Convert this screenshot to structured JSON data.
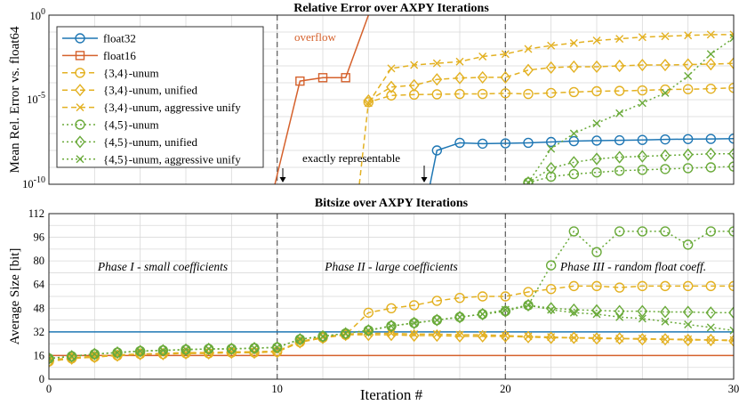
{
  "colors": {
    "float32": "#1f77b4",
    "float16": "#d5612c",
    "unum34": "#e3b122",
    "unum45": "#6aaa3a",
    "grid": "#d9d9d9",
    "vline": "#666666"
  },
  "chart_data": [
    {
      "type": "line",
      "title": "Relative Error over AXPY Iterations",
      "xlabel": "",
      "ylabel": "Mean Rel. Error vs. float64",
      "yscale": "log",
      "xlim": [
        0,
        30
      ],
      "ylim_exponent": [
        -10,
        0
      ],
      "ytick_labels": [
        "10^0",
        "10^-5",
        "10^-10"
      ],
      "grid": true,
      "legend_position": "top-left",
      "series": [
        {
          "name": "float32",
          "key": "float32",
          "dash": "solid",
          "marker": "circle",
          "x": [
            16.7,
            17,
            18,
            19,
            20,
            21,
            22,
            23,
            24,
            25,
            26,
            27,
            28,
            29,
            30
          ],
          "log10y": [
            -10,
            -8.0,
            -7.55,
            -7.6,
            -7.58,
            -7.55,
            -7.5,
            -7.45,
            -7.42,
            -7.4,
            -7.38,
            -7.35,
            -7.33,
            -7.32,
            -7.3
          ]
        },
        {
          "name": "float16",
          "key": "float16",
          "dash": "solid",
          "marker": "square",
          "x": [
            9.9,
            11,
            12,
            13,
            14
          ],
          "log10y": [
            -10,
            -3.9,
            -3.7,
            -3.7,
            0
          ]
        },
        {
          "name": "{3,4}-unum",
          "key": "unum34",
          "dash": "dashed",
          "marker": "circle",
          "x": [
            13.6,
            14,
            15,
            16,
            17,
            18,
            19,
            20,
            21,
            22,
            23,
            24,
            25,
            26,
            27,
            28,
            29,
            30
          ],
          "log10y": [
            -10,
            -5.15,
            -4.75,
            -4.7,
            -4.68,
            -4.66,
            -4.66,
            -4.62,
            -4.66,
            -4.6,
            -4.55,
            -4.5,
            -4.48,
            -4.45,
            -4.4,
            -4.38,
            -4.35,
            -4.3
          ]
        },
        {
          "name": "{3,4}-unum, unified",
          "key": "unum34",
          "dash": "dashed",
          "marker": "diamond",
          "x": [
            14,
            15,
            16,
            17,
            18,
            19,
            20,
            21,
            22,
            23,
            24,
            25,
            26,
            27,
            28,
            29,
            30
          ],
          "log10y": [
            -5.05,
            -4.25,
            -4.15,
            -3.8,
            -3.72,
            -3.68,
            -3.68,
            -3.25,
            -3.1,
            -3.05,
            -3.05,
            -3.0,
            -2.95,
            -2.95,
            -2.92,
            -2.9,
            -2.85
          ]
        },
        {
          "name": "{3,4}-unum, aggressive unify",
          "key": "unum34",
          "dash": "dashed",
          "marker": "x",
          "x": [
            14,
            15,
            16,
            17,
            18,
            19,
            20,
            21,
            22,
            23,
            24,
            25,
            26,
            27,
            28,
            29,
            30
          ],
          "log10y": [
            -5.2,
            -3.15,
            -2.95,
            -2.85,
            -2.75,
            -2.45,
            -2.3,
            -2.0,
            -1.8,
            -1.65,
            -1.5,
            -1.4,
            -1.3,
            -1.25,
            -1.2,
            -1.15,
            -1.15
          ]
        },
        {
          "name": "{4,5}-unum",
          "key": "unum45",
          "dash": "dotted",
          "marker": "circle",
          "x": [
            21,
            22,
            23,
            24,
            25,
            26,
            27,
            28,
            29,
            30
          ],
          "log10y": [
            -9.9,
            -9.55,
            -9.4,
            -9.3,
            -9.2,
            -9.15,
            -9.1,
            -9.05,
            -9.0,
            -8.95
          ]
        },
        {
          "name": "{4,5}-unum, unified",
          "key": "unum45",
          "dash": "dotted",
          "marker": "diamond",
          "x": [
            21,
            22,
            23,
            24,
            25,
            26,
            27,
            28,
            29,
            30
          ],
          "log10y": [
            -9.9,
            -9.05,
            -8.7,
            -8.5,
            -8.4,
            -8.35,
            -8.3,
            -8.25,
            -8.2,
            -8.2
          ]
        },
        {
          "name": "{4,5}-unum, aggressive unify",
          "key": "unum45",
          "dash": "dotted",
          "marker": "x",
          "x": [
            21,
            22,
            23,
            24,
            25,
            26,
            27,
            28,
            29,
            30
          ],
          "log10y": [
            -9.9,
            -7.9,
            -7.0,
            -6.4,
            -5.8,
            -5.2,
            -4.6,
            -3.6,
            -2.3,
            -1.35
          ]
        }
      ],
      "vlines": [
        10,
        20
      ],
      "annotations": {
        "overflow": "overflow",
        "exactly_representable": "exactly representable"
      }
    },
    {
      "type": "line",
      "title": "Bitsize over AXPY Iterations",
      "xlabel": "Iteration #",
      "ylabel": "Average Size [bit]",
      "xlim": [
        0,
        30
      ],
      "ylim": [
        0,
        112
      ],
      "xticks": [
        0,
        10,
        20,
        30
      ],
      "yticks": [
        0,
        16,
        32,
        48,
        64,
        80,
        96,
        112
      ],
      "grid": true,
      "series": [
        {
          "name": "float32",
          "key": "float32",
          "dash": "solid",
          "marker": "none",
          "x": [
            0,
            30
          ],
          "y": [
            32,
            32
          ]
        },
        {
          "name": "float16",
          "key": "float16",
          "dash": "solid",
          "marker": "none",
          "x": [
            0,
            30
          ],
          "y": [
            16,
            16
          ]
        },
        {
          "name": "{3,4}-unum",
          "key": "unum34",
          "dash": "dashed",
          "marker": "circle",
          "x": [
            0,
            1,
            2,
            3,
            4,
            5,
            6,
            7,
            8,
            9,
            10,
            11,
            12,
            13,
            14,
            15,
            16,
            17,
            18,
            19,
            20,
            21,
            22,
            23,
            24,
            25,
            26,
            27,
            28,
            29,
            30
          ],
          "y": [
            12,
            14,
            15,
            16,
            17,
            17,
            17.5,
            17.5,
            18,
            18,
            18.5,
            25,
            28,
            30,
            45,
            48,
            50,
            53,
            55,
            56,
            56,
            59,
            61,
            63,
            63,
            62,
            63,
            63,
            63,
            63,
            63
          ]
        },
        {
          "name": "{3,4}-unum, unified",
          "key": "unum34",
          "dash": "dashed",
          "marker": "diamond",
          "x": [
            0,
            1,
            2,
            3,
            4,
            5,
            6,
            7,
            8,
            9,
            10,
            11,
            12,
            13,
            14,
            15,
            16,
            17,
            18,
            19,
            20,
            21,
            22,
            23,
            24,
            25,
            26,
            27,
            28,
            29,
            30
          ],
          "y": [
            12,
            14,
            15,
            16,
            17,
            17,
            17.5,
            17.5,
            18,
            18,
            18.5,
            25,
            28,
            30,
            30,
            30,
            29.5,
            29.5,
            29,
            29,
            29,
            28.5,
            28,
            28,
            27.5,
            27.5,
            27,
            27,
            26.5,
            26.5,
            26
          ]
        },
        {
          "name": "{3,4}-unum, aggressive unify",
          "key": "unum34",
          "dash": "dashed",
          "marker": "x",
          "x": [
            0,
            1,
            2,
            3,
            4,
            5,
            6,
            7,
            8,
            9,
            10,
            11,
            12,
            13,
            14,
            15,
            16,
            17,
            18,
            19,
            20,
            21,
            22,
            23,
            24,
            25,
            26,
            27,
            28,
            29,
            30
          ],
          "y": [
            13,
            14.5,
            15.5,
            16.5,
            17,
            17.5,
            18,
            18,
            18.5,
            18.5,
            19,
            25.5,
            28.5,
            30.5,
            31,
            31,
            30.5,
            30.5,
            30,
            30,
            29.5,
            29,
            28.5,
            28,
            28,
            27.5,
            27.5,
            27,
            27,
            26.5,
            26.5
          ]
        },
        {
          "name": "{4,5}-unum",
          "key": "unum45",
          "dash": "dotted",
          "marker": "circle",
          "x": [
            0,
            1,
            2,
            3,
            4,
            5,
            6,
            7,
            8,
            9,
            10,
            11,
            12,
            13,
            14,
            15,
            16,
            17,
            18,
            19,
            20,
            21,
            22,
            23,
            24,
            25,
            26,
            27,
            28,
            29,
            30
          ],
          "y": [
            14,
            15.5,
            17,
            18,
            19,
            19.5,
            20,
            20.5,
            20.5,
            21,
            21.5,
            27,
            29,
            31,
            33,
            36,
            38,
            40,
            42,
            44,
            46,
            50,
            77,
            100,
            86,
            100,
            100,
            100,
            91,
            100,
            100
          ]
        },
        {
          "name": "{4,5}-unum, unified",
          "key": "unum45",
          "dash": "dotted",
          "marker": "diamond",
          "x": [
            0,
            1,
            2,
            3,
            4,
            5,
            6,
            7,
            8,
            9,
            10,
            11,
            12,
            13,
            14,
            15,
            16,
            17,
            18,
            19,
            20,
            21,
            22,
            23,
            24,
            25,
            26,
            27,
            28,
            29,
            30
          ],
          "y": [
            14,
            15.5,
            17,
            18,
            19,
            19.5,
            20,
            20.5,
            20.5,
            21,
            21.5,
            27,
            29,
            31,
            33,
            36,
            38,
            40,
            42,
            44,
            46,
            50,
            48,
            47,
            46.5,
            46,
            46,
            45.5,
            45.5,
            45,
            45
          ]
        },
        {
          "name": "{4,5}-unum, aggressive unify",
          "key": "unum45",
          "dash": "dotted",
          "marker": "x",
          "x": [
            0,
            1,
            2,
            3,
            4,
            5,
            6,
            7,
            8,
            9,
            10,
            11,
            12,
            13,
            14,
            15,
            16,
            17,
            18,
            19,
            20,
            21,
            22,
            23,
            24,
            25,
            26,
            27,
            28,
            29,
            30
          ],
          "y": [
            14,
            15.5,
            17,
            18,
            19,
            19.5,
            20,
            20.5,
            20.5,
            21,
            21.5,
            27,
            29,
            31,
            33,
            36,
            38,
            40,
            42,
            44,
            47,
            50,
            47,
            45,
            44,
            42,
            41,
            39,
            37,
            35,
            33
          ]
        }
      ],
      "vlines": [
        10,
        20
      ],
      "phases": [
        "Phase I - small coefficients",
        "Phase II - large coefficients",
        "Phase III - random float coeff."
      ]
    }
  ]
}
